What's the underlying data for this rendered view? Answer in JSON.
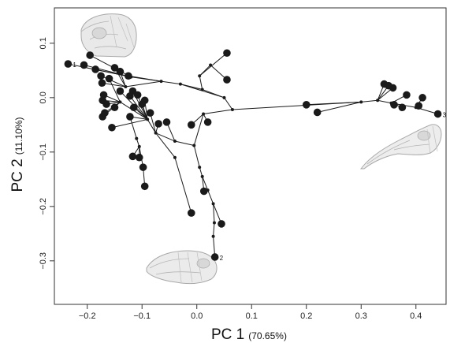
{
  "chart_data": {
    "type": "scatter",
    "title": "",
    "xlabel": "PC 1",
    "xlabel_unit": "(70.65%)",
    "ylabel": "PC 2",
    "ylabel_unit": "(11.10%)",
    "xlim": [
      -0.26,
      0.455
    ],
    "ylim": [
      -0.38,
      0.165
    ],
    "x_ticks": [
      -0.2,
      -0.1,
      0.0,
      0.1,
      0.2,
      0.3,
      0.4
    ],
    "x_tick_labels": [
      "−0.2",
      "−0.1",
      "0.0",
      "0.1",
      "0.2",
      "0.3",
      "0.4"
    ],
    "y_ticks": [
      0.1,
      0.0,
      -0.1,
      -0.2,
      -0.3
    ],
    "y_tick_labels": [
      "0.1",
      "0.0",
      "−0.1",
      "−0.2",
      "−0.3"
    ],
    "grid": false,
    "colors": {
      "points": "#1a1a1a",
      "lines": "#1a1a1a",
      "axes": "#333333"
    },
    "nodes": [
      {
        "x": -0.235,
        "y": 0.062
      },
      {
        "x": -0.206,
        "y": 0.06
      },
      {
        "x": -0.195,
        "y": 0.078
      },
      {
        "x": -0.185,
        "y": 0.052
      },
      {
        "x": -0.175,
        "y": 0.04
      },
      {
        "x": -0.173,
        "y": 0.027
      },
      {
        "x": -0.15,
        "y": 0.055
      },
      {
        "x": -0.14,
        "y": 0.048
      },
      {
        "x": -0.125,
        "y": 0.04
      },
      {
        "x": -0.16,
        "y": 0.035
      },
      {
        "x": -0.17,
        "y": 0.005
      },
      {
        "x": -0.172,
        "y": -0.005
      },
      {
        "x": -0.165,
        "y": -0.012
      },
      {
        "x": -0.168,
        "y": -0.028
      },
      {
        "x": -0.172,
        "y": -0.035
      },
      {
        "x": -0.15,
        "y": -0.018
      },
      {
        "x": -0.14,
        "y": 0.012
      },
      {
        "x": -0.122,
        "y": 0.003
      },
      {
        "x": -0.117,
        "y": 0.012
      },
      {
        "x": -0.108,
        "y": 0.005
      },
      {
        "x": -0.095,
        "y": -0.005
      },
      {
        "x": -0.1,
        "y": -0.012
      },
      {
        "x": -0.115,
        "y": -0.018
      },
      {
        "x": -0.122,
        "y": -0.035
      },
      {
        "x": -0.155,
        "y": -0.055
      },
      {
        "x": -0.085,
        "y": -0.028
      },
      {
        "x": -0.07,
        "y": -0.048
      },
      {
        "x": -0.055,
        "y": -0.045
      },
      {
        "x": -0.01,
        "y": -0.05
      },
      {
        "x": 0.02,
        "y": -0.045
      },
      {
        "x": 0.055,
        "y": 0.082
      },
      {
        "x": 0.055,
        "y": 0.033
      },
      {
        "x": -0.117,
        "y": -0.108
      },
      {
        "x": -0.105,
        "y": -0.11
      },
      {
        "x": -0.098,
        "y": -0.128
      },
      {
        "x": -0.095,
        "y": -0.163
      },
      {
        "x": -0.01,
        "y": -0.212
      },
      {
        "x": 0.013,
        "y": -0.172
      },
      {
        "x": 0.045,
        "y": -0.232
      },
      {
        "x": 0.033,
        "y": -0.293
      },
      {
        "x": 0.2,
        "y": -0.013
      },
      {
        "x": 0.22,
        "y": -0.027
      },
      {
        "x": 0.342,
        "y": 0.025
      },
      {
        "x": 0.35,
        "y": 0.022
      },
      {
        "x": 0.358,
        "y": 0.018
      },
      {
        "x": 0.36,
        "y": -0.013
      },
      {
        "x": 0.375,
        "y": -0.018
      },
      {
        "x": 0.383,
        "y": 0.005
      },
      {
        "x": 0.405,
        "y": -0.015
      },
      {
        "x": 0.412,
        "y": 0.0
      },
      {
        "x": 0.44,
        "y": -0.03
      }
    ],
    "internal_nodes": [
      {
        "x": -0.12,
        "y": 0.038
      },
      {
        "x": -0.065,
        "y": 0.03
      },
      {
        "x": -0.03,
        "y": 0.025
      },
      {
        "x": 0.005,
        "y": 0.04
      },
      {
        "x": 0.01,
        "y": 0.015
      },
      {
        "x": 0.05,
        "y": 0.0
      },
      {
        "x": 0.065,
        "y": -0.022
      },
      {
        "x": 0.025,
        "y": 0.06
      },
      {
        "x": 0.012,
        "y": -0.03
      },
      {
        "x": 0.3,
        "y": -0.008
      },
      {
        "x": 0.33,
        "y": -0.005
      },
      {
        "x": 0.355,
        "y": -0.01
      },
      {
        "x": 0.4,
        "y": -0.018
      },
      {
        "x": -0.09,
        "y": -0.04
      },
      {
        "x": -0.075,
        "y": -0.065
      },
      {
        "x": -0.04,
        "y": -0.08
      },
      {
        "x": -0.005,
        "y": -0.088
      },
      {
        "x": -0.11,
        "y": -0.075
      },
      {
        "x": -0.105,
        "y": -0.09
      },
      {
        "x": 0.005,
        "y": -0.128
      },
      {
        "x": 0.01,
        "y": -0.145
      },
      {
        "x": 0.02,
        "y": -0.17
      },
      {
        "x": 0.03,
        "y": -0.195
      },
      {
        "x": 0.032,
        "y": -0.23
      },
      {
        "x": 0.03,
        "y": -0.255
      },
      {
        "x": -0.04,
        "y": -0.11
      },
      {
        "x": -0.14,
        "y": -0.008
      },
      {
        "x": -0.13,
        "y": 0.02
      }
    ],
    "edges": [
      [
        0,
        51
      ],
      [
        1,
        51
      ],
      [
        2,
        51
      ],
      [
        3,
        51
      ],
      [
        51,
        52
      ],
      [
        52,
        53
      ],
      [
        53,
        56
      ],
      [
        56,
        57
      ],
      [
        54,
        30
      ],
      [
        54,
        58
      ],
      [
        58,
        31
      ],
      [
        55,
        54
      ],
      [
        53,
        55
      ],
      [
        55,
        56
      ],
      [
        4,
        78
      ],
      [
        5,
        78
      ],
      [
        6,
        78
      ],
      [
        7,
        78
      ],
      [
        78,
        52
      ],
      [
        8,
        52
      ],
      [
        9,
        77
      ],
      [
        10,
        77
      ],
      [
        11,
        77
      ],
      [
        12,
        77
      ],
      [
        13,
        77
      ],
      [
        14,
        77
      ],
      [
        15,
        77
      ],
      [
        77,
        64
      ],
      [
        16,
        64
      ],
      [
        17,
        64
      ],
      [
        18,
        64
      ],
      [
        19,
        64
      ],
      [
        20,
        64
      ],
      [
        21,
        64
      ],
      [
        22,
        64
      ],
      [
        23,
        64
      ],
      [
        64,
        65
      ],
      [
        65,
        66
      ],
      [
        66,
        67
      ],
      [
        67,
        59
      ],
      [
        59,
        28
      ],
      [
        59,
        29
      ],
      [
        59,
        57
      ],
      [
        24,
        64
      ],
      [
        25,
        65
      ],
      [
        26,
        65
      ],
      [
        27,
        66
      ],
      [
        23,
        68
      ],
      [
        68,
        69
      ],
      [
        69,
        32
      ],
      [
        69,
        33
      ],
      [
        69,
        34
      ],
      [
        34,
        35
      ],
      [
        65,
        76
      ],
      [
        76,
        36
      ],
      [
        67,
        70
      ],
      [
        70,
        71
      ],
      [
        71,
        37
      ],
      [
        71,
        72
      ],
      [
        72,
        73
      ],
      [
        73,
        38
      ],
      [
        73,
        74
      ],
      [
        74,
        75
      ],
      [
        75,
        39
      ],
      [
        57,
        60
      ],
      [
        60,
        40
      ],
      [
        60,
        41
      ],
      [
        60,
        61
      ],
      [
        61,
        42
      ],
      [
        61,
        43
      ],
      [
        61,
        44
      ],
      [
        61,
        62
      ],
      [
        62,
        45
      ],
      [
        62,
        46
      ],
      [
        62,
        47
      ],
      [
        62,
        63
      ],
      [
        63,
        48
      ],
      [
        63,
        49
      ],
      [
        63,
        50
      ]
    ],
    "point_labels": [
      {
        "node": 0,
        "text": "1"
      },
      {
        "node": 39,
        "text": "2"
      },
      {
        "node": 50,
        "text": "3"
      }
    ],
    "annotations": [
      {
        "type": "image",
        "name": "skull-upper-left-illustration"
      },
      {
        "type": "image",
        "name": "skull-right-long-beak-illustration"
      },
      {
        "type": "image",
        "name": "skull-bottom-illustration"
      }
    ]
  }
}
